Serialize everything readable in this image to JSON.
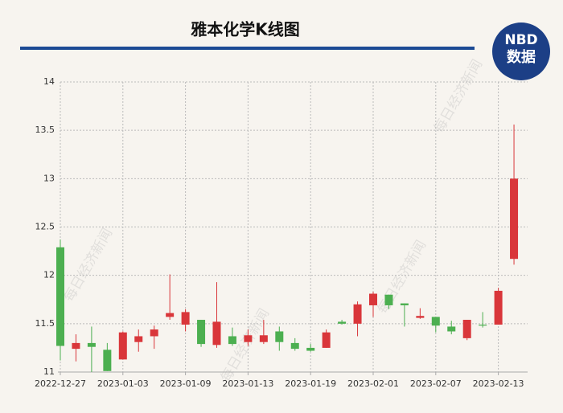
{
  "chart_data": {
    "type": "candlestick",
    "title": "雅本化学K线图",
    "categories": [
      "2022-12-27",
      null,
      null,
      null,
      "2023-01-03",
      null,
      null,
      null,
      "2023-01-09",
      null,
      null,
      null,
      "2023-01-13",
      null,
      null,
      null,
      "2023-01-19",
      null,
      null,
      null,
      "2023-02-01",
      null,
      null,
      null,
      "2023-02-07",
      null,
      null,
      null,
      "2023-02-13",
      null
    ],
    "open": [
      12.29,
      11.24,
      11.3,
      11.23,
      11.13,
      11.31,
      11.37,
      11.57,
      11.49,
      11.54,
      11.28,
      11.37,
      11.31,
      11.31,
      11.42,
      11.3,
      11.25,
      11.25,
      11.52,
      11.5,
      11.69,
      11.8,
      11.71,
      11.56,
      11.57,
      11.47,
      11.35,
      11.49,
      11.49,
      12.17
    ],
    "high": [
      12.37,
      11.39,
      11.47,
      11.3,
      11.42,
      11.44,
      11.48,
      12.01,
      11.65,
      11.54,
      11.93,
      11.46,
      11.44,
      11.54,
      11.47,
      11.35,
      11.29,
      11.44,
      11.54,
      11.73,
      11.83,
      11.8,
      11.71,
      11.66,
      11.57,
      11.53,
      11.54,
      11.62,
      11.87,
      13.56
    ],
    "low": [
      11.12,
      11.11,
      11.0,
      11.01,
      11.13,
      11.21,
      11.24,
      11.54,
      11.42,
      11.26,
      11.25,
      11.27,
      11.27,
      11.29,
      11.22,
      11.22,
      11.21,
      11.25,
      11.49,
      11.37,
      11.57,
      11.65,
      11.47,
      11.55,
      11.41,
      11.39,
      11.33,
      11.46,
      11.49,
      12.11
    ],
    "close": [
      11.27,
      11.3,
      11.26,
      11.01,
      11.41,
      11.37,
      11.44,
      11.61,
      11.62,
      11.29,
      11.52,
      11.29,
      11.38,
      11.38,
      11.31,
      11.24,
      11.22,
      11.41,
      11.5,
      11.7,
      11.81,
      11.69,
      11.69,
      11.58,
      11.48,
      11.42,
      11.54,
      11.48,
      11.84,
      13.0
    ],
    "up_color": "#d9363a",
    "down_color": "#4caf50",
    "ylim": [
      11,
      14
    ],
    "yticks": [
      11,
      11.5,
      12,
      12.5,
      13,
      13.5,
      14
    ],
    "grid": true
  },
  "logo": {
    "top": "NBD",
    "bottom": "数据"
  },
  "watermark": "每日经济新闻"
}
